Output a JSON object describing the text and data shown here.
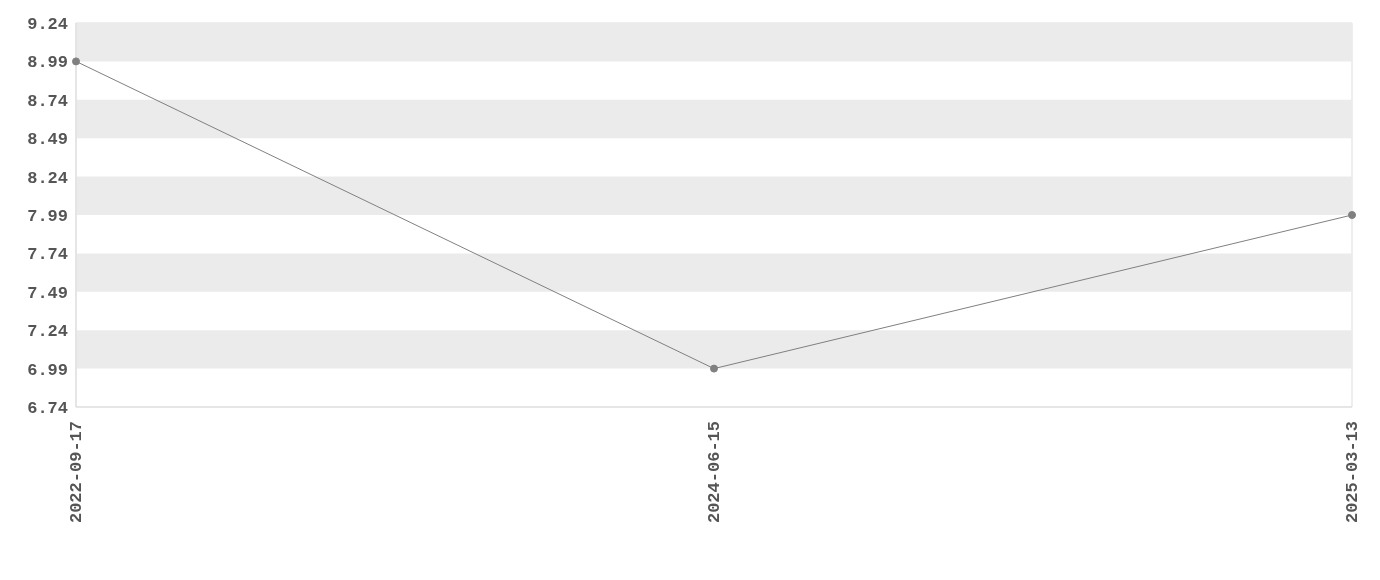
{
  "chart_data": {
    "type": "line",
    "categories": [
      "2022-09-17",
      "2024-06-15",
      "2025-03-13"
    ],
    "series": [
      {
        "color": "#808080",
        "values": [
          8.99,
          6.99,
          7.99
        ]
      }
    ],
    "ylim": [
      6.74,
      9.24
    ],
    "yticks": [
      6.74,
      6.99,
      7.24,
      7.49,
      7.74,
      7.99,
      8.24,
      8.49,
      8.74,
      8.99,
      9.24
    ],
    "bands": [
      {
        "axis": "y",
        "from": 8.99,
        "to": 9.24,
        "color": "#ebebeb"
      },
      {
        "axis": "y",
        "from": 8.49,
        "to": 8.74,
        "color": "#ebebeb"
      },
      {
        "axis": "y",
        "from": 7.99,
        "to": 8.24,
        "color": "#ebebeb"
      },
      {
        "axis": "y",
        "from": 7.49,
        "to": 7.74,
        "color": "#ebebeb"
      },
      {
        "axis": "y",
        "from": 6.99,
        "to": 7.24,
        "color": "#ebebeb"
      }
    ],
    "marker": "circle",
    "line_style": "solid",
    "legend": false
  }
}
